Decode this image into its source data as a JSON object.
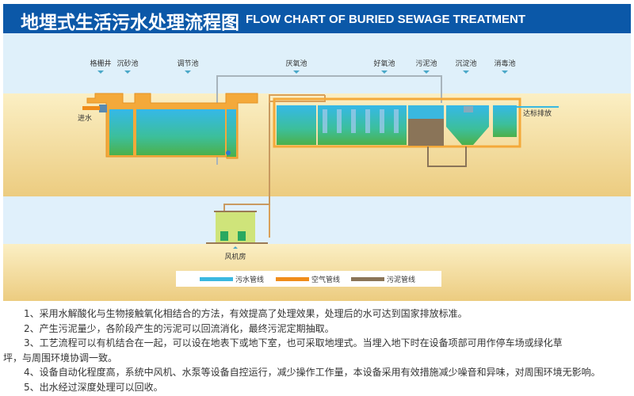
{
  "header": {
    "title_cn": "地埋式生活污水处理流程图",
    "title_en": "FLOW CHART OF BURIED SEWAGE TREATMENT"
  },
  "diagram": {
    "stages": [
      "格栅井",
      "沉砂池",
      "调节池",
      "厌氧池",
      "好氧池",
      "污泥池",
      "沉淀池",
      "消毒池"
    ],
    "inlet": "进水",
    "outlet": "达标排放",
    "blower_room": "风机房",
    "legend": [
      {
        "label": "污水管线",
        "color": "#3ab8e0"
      },
      {
        "label": "空气管线",
        "color": "#f08c1a"
      },
      {
        "label": "污泥管线",
        "color": "#8a7458"
      }
    ]
  },
  "notes": {
    "item1": "1、采用水解酸化与生物接触氧化相结合的方法，有效提高了处理效果，处理后的水可达到国家排放标准。",
    "item2": "2、产生污泥量少，各阶段产生的污泥可以回流消化，最终污泥定期抽取。",
    "item3": "3、工艺流程可以有机结合在一起，可以设在地表下或地下室，也可采取地埋式。当埋入地下时在设备项部可用作停车场或绿化草",
    "item3_cont": "坪，与周围环境协调一致。",
    "item4": "4、设备自动化程度高，系统中风机、水泵等设备自控运行，减少操作工作量，本设备采用有效措施减少噪音和异味，对周围环境无影响。",
    "item5": "5、出水经过深度处理可以回收。"
  }
}
